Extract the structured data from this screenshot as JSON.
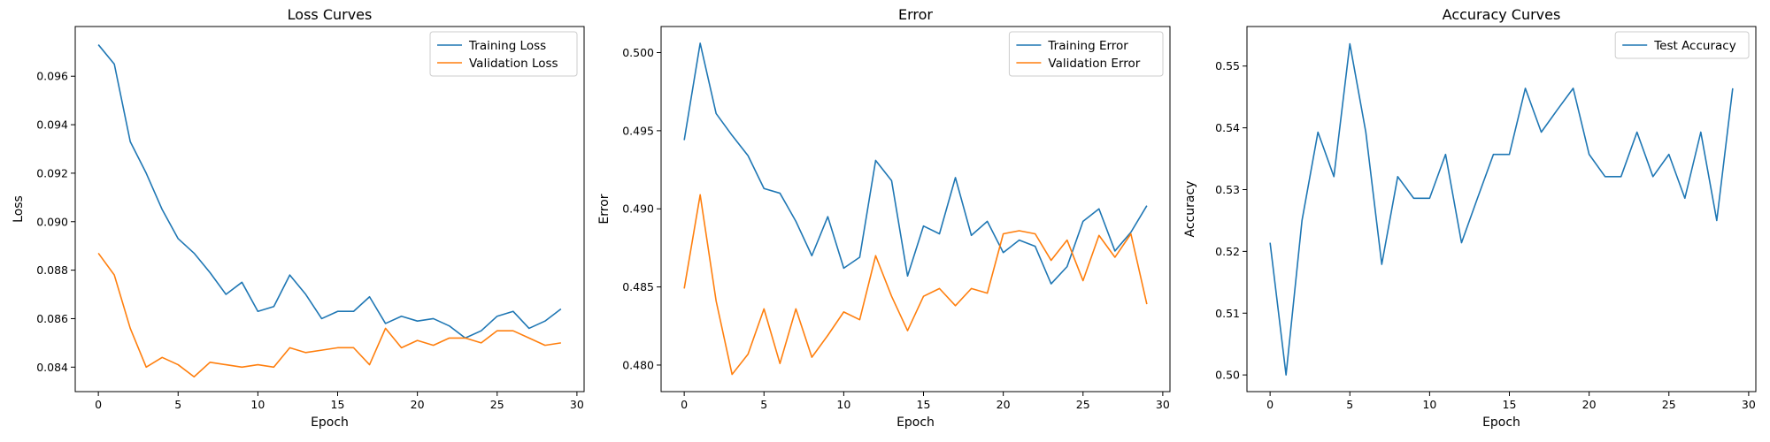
{
  "chart_data": [
    {
      "type": "line",
      "title": "Loss Curves",
      "xlabel": "Epoch",
      "ylabel": "Loss",
      "xlim": [
        -1.45,
        30.45
      ],
      "ylim": [
        0.08299,
        0.09805
      ],
      "xticks": [
        0,
        5,
        10,
        15,
        20,
        25,
        30
      ],
      "yticks": [
        0.084,
        0.086,
        0.088,
        0.09,
        0.092,
        0.094,
        0.096
      ],
      "tick_decimals": 3,
      "legend": "top-right",
      "x": [
        0,
        1,
        2,
        3,
        4,
        5,
        6,
        7,
        8,
        9,
        10,
        11,
        12,
        13,
        14,
        15,
        16,
        17,
        18,
        19,
        20,
        21,
        22,
        23,
        24,
        25,
        26,
        27,
        28,
        29
      ],
      "series": [
        {
          "name": "Training Loss",
          "color": "#1f77b4",
          "values": [
            0.0973,
            0.0965,
            0.0933,
            0.092,
            0.0905,
            0.0893,
            0.0887,
            0.0879,
            0.087,
            0.0875,
            0.0863,
            0.0865,
            0.0878,
            0.087,
            0.086,
            0.0863,
            0.0863,
            0.0869,
            0.0858,
            0.0861,
            0.0859,
            0.086,
            0.0857,
            0.0852,
            0.0855,
            0.0861,
            0.0863,
            0.0856,
            0.0859,
            0.0864
          ]
        },
        {
          "name": "Validation Loss",
          "color": "#ff7f0e",
          "values": [
            0.0887,
            0.0878,
            0.0856,
            0.084,
            0.0844,
            0.0841,
            0.0836,
            0.0842,
            0.0841,
            0.084,
            0.0841,
            0.084,
            0.0848,
            0.0846,
            0.0847,
            0.0848,
            0.0848,
            0.0841,
            0.0856,
            0.0848,
            0.0851,
            0.0849,
            0.0852,
            0.0852,
            0.085,
            0.0855,
            0.0855,
            0.0852,
            0.0849,
            0.085
          ]
        }
      ]
    },
    {
      "type": "line",
      "title": "Error",
      "xlabel": "Epoch",
      "ylabel": "Error",
      "xlim": [
        -1.45,
        30.45
      ],
      "ylim": [
        0.4783,
        0.50167
      ],
      "xticks": [
        0,
        5,
        10,
        15,
        20,
        25,
        30
      ],
      "yticks": [
        0.48,
        0.485,
        0.49,
        0.495,
        0.5
      ],
      "tick_decimals": 3,
      "legend": "top-right",
      "x": [
        0,
        1,
        2,
        3,
        4,
        5,
        6,
        7,
        8,
        9,
        10,
        11,
        12,
        13,
        14,
        15,
        16,
        17,
        18,
        19,
        20,
        21,
        22,
        23,
        24,
        25,
        26,
        27,
        28,
        29
      ],
      "series": [
        {
          "name": "Training Error",
          "color": "#1f77b4",
          "values": [
            0.4944,
            0.5006,
            0.4961,
            0.4947,
            0.4934,
            0.4913,
            0.491,
            0.4892,
            0.487,
            0.4895,
            0.4862,
            0.4869,
            0.4931,
            0.4918,
            0.4857,
            0.4889,
            0.4884,
            0.492,
            0.4883,
            0.4892,
            0.4872,
            0.488,
            0.4876,
            0.4852,
            0.4863,
            0.4892,
            0.49,
            0.4873,
            0.4885,
            0.4902
          ]
        },
        {
          "name": "Validation Error",
          "color": "#ff7f0e",
          "values": [
            0.4849,
            0.4909,
            0.4841,
            0.4794,
            0.4807,
            0.4836,
            0.4801,
            0.4836,
            0.4805,
            0.4819,
            0.4834,
            0.4829,
            0.487,
            0.4844,
            0.4822,
            0.4844,
            0.4849,
            0.4838,
            0.4849,
            0.4846,
            0.4884,
            0.4886,
            0.4884,
            0.4867,
            0.488,
            0.4854,
            0.4883,
            0.4869,
            0.4884,
            0.4839
          ]
        }
      ]
    },
    {
      "type": "line",
      "title": "Accuracy Curves",
      "xlabel": "Epoch",
      "ylabel": "Accuracy",
      "xlim": [
        -1.45,
        30.45
      ],
      "ylim": [
        0.4973,
        0.5564
      ],
      "xticks": [
        0,
        5,
        10,
        15,
        20,
        25,
        30
      ],
      "yticks": [
        0.5,
        0.51,
        0.52,
        0.53,
        0.54,
        0.55
      ],
      "tick_decimals": 2,
      "legend": "top-right",
      "x": [
        0,
        1,
        2,
        3,
        4,
        5,
        6,
        7,
        8,
        9,
        10,
        11,
        12,
        13,
        14,
        15,
        16,
        17,
        18,
        19,
        20,
        21,
        22,
        23,
        24,
        25,
        26,
        27,
        28,
        29
      ],
      "series": [
        {
          "name": "Test Accuracy",
          "color": "#1f77b4",
          "values": [
            0.5214,
            0.5,
            0.525,
            0.5393,
            0.5321,
            0.5536,
            0.5393,
            0.5179,
            0.5321,
            0.5286,
            0.5286,
            0.5357,
            0.5214,
            0.5286,
            0.5357,
            0.5357,
            0.5464,
            0.5393,
            0.5429,
            0.5464,
            0.5357,
            0.5321,
            0.5321,
            0.5393,
            0.5321,
            0.5357,
            0.5286,
            0.5393,
            0.525,
            0.5464
          ]
        }
      ]
    }
  ]
}
